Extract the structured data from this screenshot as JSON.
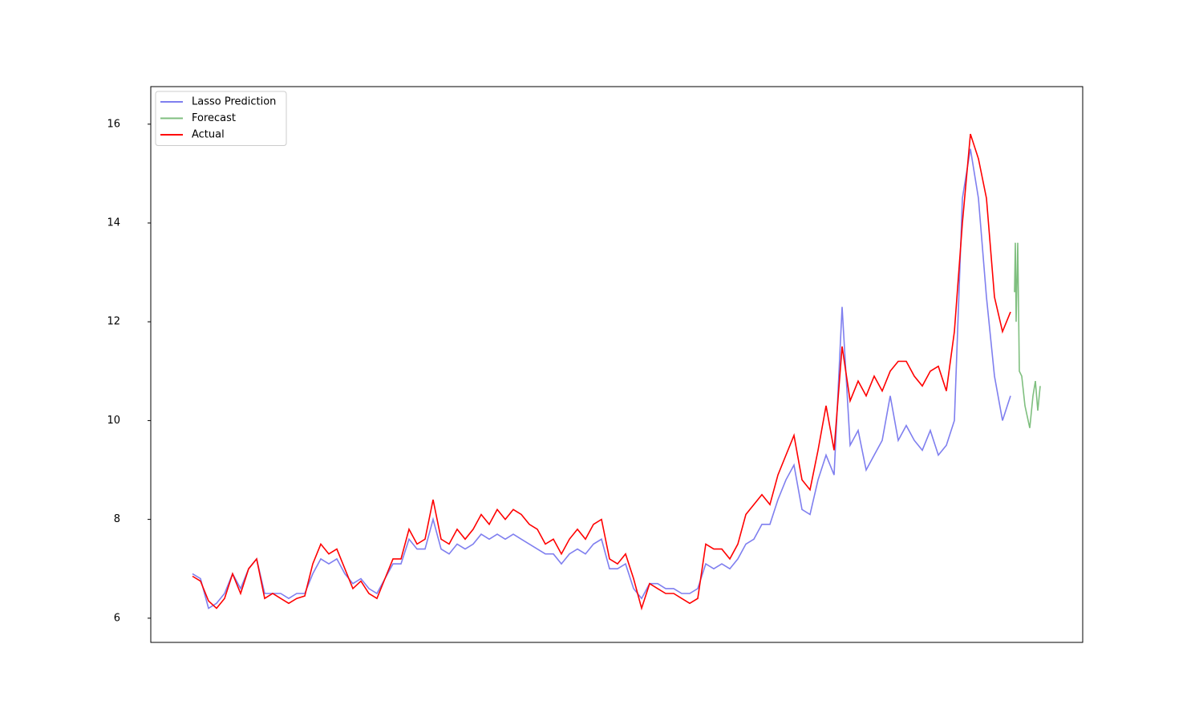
{
  "chart_data": {
    "type": "line",
    "x": [
      0,
      1,
      2,
      3,
      4,
      5,
      6,
      7,
      8,
      9,
      10,
      11,
      12,
      13,
      14,
      15,
      16,
      17,
      18,
      19,
      20,
      21,
      22,
      23,
      24,
      25,
      26,
      27,
      28,
      29,
      30,
      31,
      32,
      33,
      34,
      35,
      36,
      37,
      38,
      39,
      40,
      41,
      42,
      43,
      44,
      45,
      46,
      47,
      48,
      49,
      50,
      51,
      52,
      53,
      54,
      55,
      56,
      57,
      58,
      59,
      60,
      61,
      62,
      63,
      64,
      65,
      66,
      67,
      68,
      69,
      70,
      71,
      72,
      73,
      74,
      75,
      76,
      77,
      78,
      79,
      80,
      81,
      82,
      83,
      84,
      85,
      86,
      87,
      88,
      89,
      90,
      91,
      92,
      93,
      94,
      95,
      96,
      97,
      98,
      99,
      100,
      101,
      102
    ],
    "series": [
      {
        "name": "Lasso Prediction",
        "color": "#7f7fef",
        "values": [
          6.9,
          6.8,
          6.2,
          6.3,
          6.5,
          6.9,
          6.6,
          7.0,
          7.2,
          6.5,
          6.5,
          6.5,
          6.4,
          6.5,
          6.5,
          6.9,
          7.2,
          7.1,
          7.2,
          6.9,
          6.7,
          6.8,
          6.6,
          6.5,
          6.8,
          7.1,
          7.1,
          7.6,
          7.4,
          7.4,
          8.0,
          7.4,
          7.3,
          7.5,
          7.4,
          7.5,
          7.7,
          7.6,
          7.7,
          7.6,
          7.7,
          7.6,
          7.5,
          7.4,
          7.3,
          7.3,
          7.1,
          7.3,
          7.4,
          7.3,
          7.5,
          7.6,
          7.0,
          7.0,
          7.1,
          6.6,
          6.4,
          6.7,
          6.7,
          6.6,
          6.6,
          6.5,
          6.5,
          6.6,
          7.1,
          7.0,
          7.1,
          7.0,
          7.2,
          7.5,
          7.6,
          7.9,
          7.9,
          8.4,
          8.8,
          9.1,
          8.2,
          8.1,
          8.8,
          9.3,
          8.9,
          12.3,
          9.5,
          9.8,
          9.0,
          9.3,
          9.6,
          10.5,
          9.6,
          9.9,
          9.6,
          9.4,
          9.8,
          9.3,
          9.5,
          10.0,
          14.5,
          15.5,
          14.5,
          12.5,
          10.9,
          10.0,
          10.5
        ]
      },
      {
        "name": "Forecast",
        "color": "#7fbf7f",
        "x": [
          102.5,
          102.6,
          102.7,
          102.9,
          103.1,
          103.4,
          103.8,
          104.4,
          104.8,
          105.1,
          105.4,
          105.7
        ],
        "values": [
          12.6,
          13.6,
          12.0,
          13.6,
          11.0,
          10.9,
          10.3,
          9.85,
          10.5,
          10.8,
          10.2,
          10.7
        ]
      },
      {
        "name": "Actual",
        "color": "#ff0000",
        "values": [
          6.85,
          6.75,
          6.35,
          6.2,
          6.4,
          6.9,
          6.5,
          7.0,
          7.2,
          6.4,
          6.5,
          6.4,
          6.3,
          6.4,
          6.45,
          7.1,
          7.5,
          7.3,
          7.4,
          7.0,
          6.6,
          6.75,
          6.5,
          6.4,
          6.8,
          7.2,
          7.2,
          7.8,
          7.5,
          7.6,
          8.4,
          7.6,
          7.5,
          7.8,
          7.6,
          7.8,
          8.1,
          7.9,
          8.2,
          8.0,
          8.2,
          8.1,
          7.9,
          7.8,
          7.5,
          7.6,
          7.3,
          7.6,
          7.8,
          7.6,
          7.9,
          8.0,
          7.2,
          7.1,
          7.3,
          6.8,
          6.2,
          6.7,
          6.6,
          6.5,
          6.5,
          6.4,
          6.3,
          6.4,
          7.5,
          7.4,
          7.4,
          7.2,
          7.5,
          8.1,
          8.3,
          8.5,
          8.3,
          8.9,
          9.3,
          9.7,
          8.8,
          8.6,
          9.4,
          10.3,
          9.4,
          11.5,
          10.4,
          10.8,
          10.5,
          10.9,
          10.6,
          11.0,
          11.2,
          11.2,
          10.9,
          10.7,
          11.0,
          11.1,
          10.6,
          11.8,
          14.0,
          15.8,
          15.3,
          14.5,
          12.5,
          11.8,
          12.2
        ]
      }
    ],
    "xlim": [
      -5.2,
      111
    ],
    "ylim": [
      5.51,
      16.76
    ],
    "yticks": [
      6,
      8,
      10,
      12,
      14,
      16
    ],
    "legend": "upper-left"
  }
}
